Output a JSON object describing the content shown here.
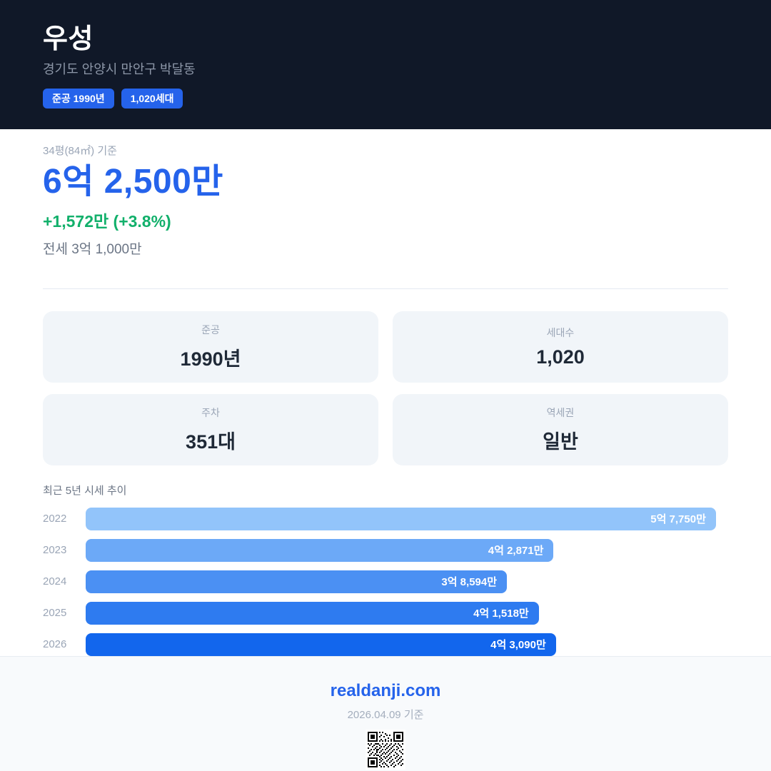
{
  "header": {
    "title": "우성",
    "address": "경기도 안양시 만안구 박달동",
    "badges": [
      {
        "label": "준공 1990년"
      },
      {
        "label": "1,020세대"
      }
    ]
  },
  "price": {
    "basis": "34평(84㎡) 기준",
    "current": "6억 2,500만",
    "change": "+1,572만 (+3.8%)",
    "jeonse": "전세 3억 1,000만"
  },
  "stats": [
    {
      "label": "준공",
      "value": "1990년"
    },
    {
      "label": "세대수",
      "value": "1,020"
    },
    {
      "label": "주차",
      "value": "351대"
    },
    {
      "label": "역세권",
      "value": "일반"
    }
  ],
  "chart_data": {
    "type": "bar",
    "orientation": "horizontal",
    "title": "최근 5년 시세 추이",
    "categories": [
      "2022",
      "2023",
      "2024",
      "2025",
      "2026"
    ],
    "values": [
      57750,
      42871,
      38594,
      41518,
      43090
    ],
    "value_labels": [
      "5억 7,750만",
      "4억 2,871만",
      "3억 8,594만",
      "4억 1,518만",
      "4억 3,090만"
    ],
    "unit": "만원",
    "xlim": [
      0,
      58900
    ],
    "grid": false,
    "bar_colors": [
      "#92c4fa",
      "#6ca9f7",
      "#4b90f3",
      "#2e7bf0",
      "#1266ed"
    ],
    "max_bar_width_pct": 98.1
  },
  "footer": {
    "site": "realdanji.com",
    "date_note": "2026.04.09 기준"
  },
  "colors": {
    "header_bg": "#101828",
    "accent_blue": "#2563eb",
    "price_blue": "#2563eb",
    "change_green": "#12b06b",
    "card_bg": "#f1f5f9",
    "footer_bg": "#f8fafc",
    "muted_text": "#9aa5b6"
  }
}
